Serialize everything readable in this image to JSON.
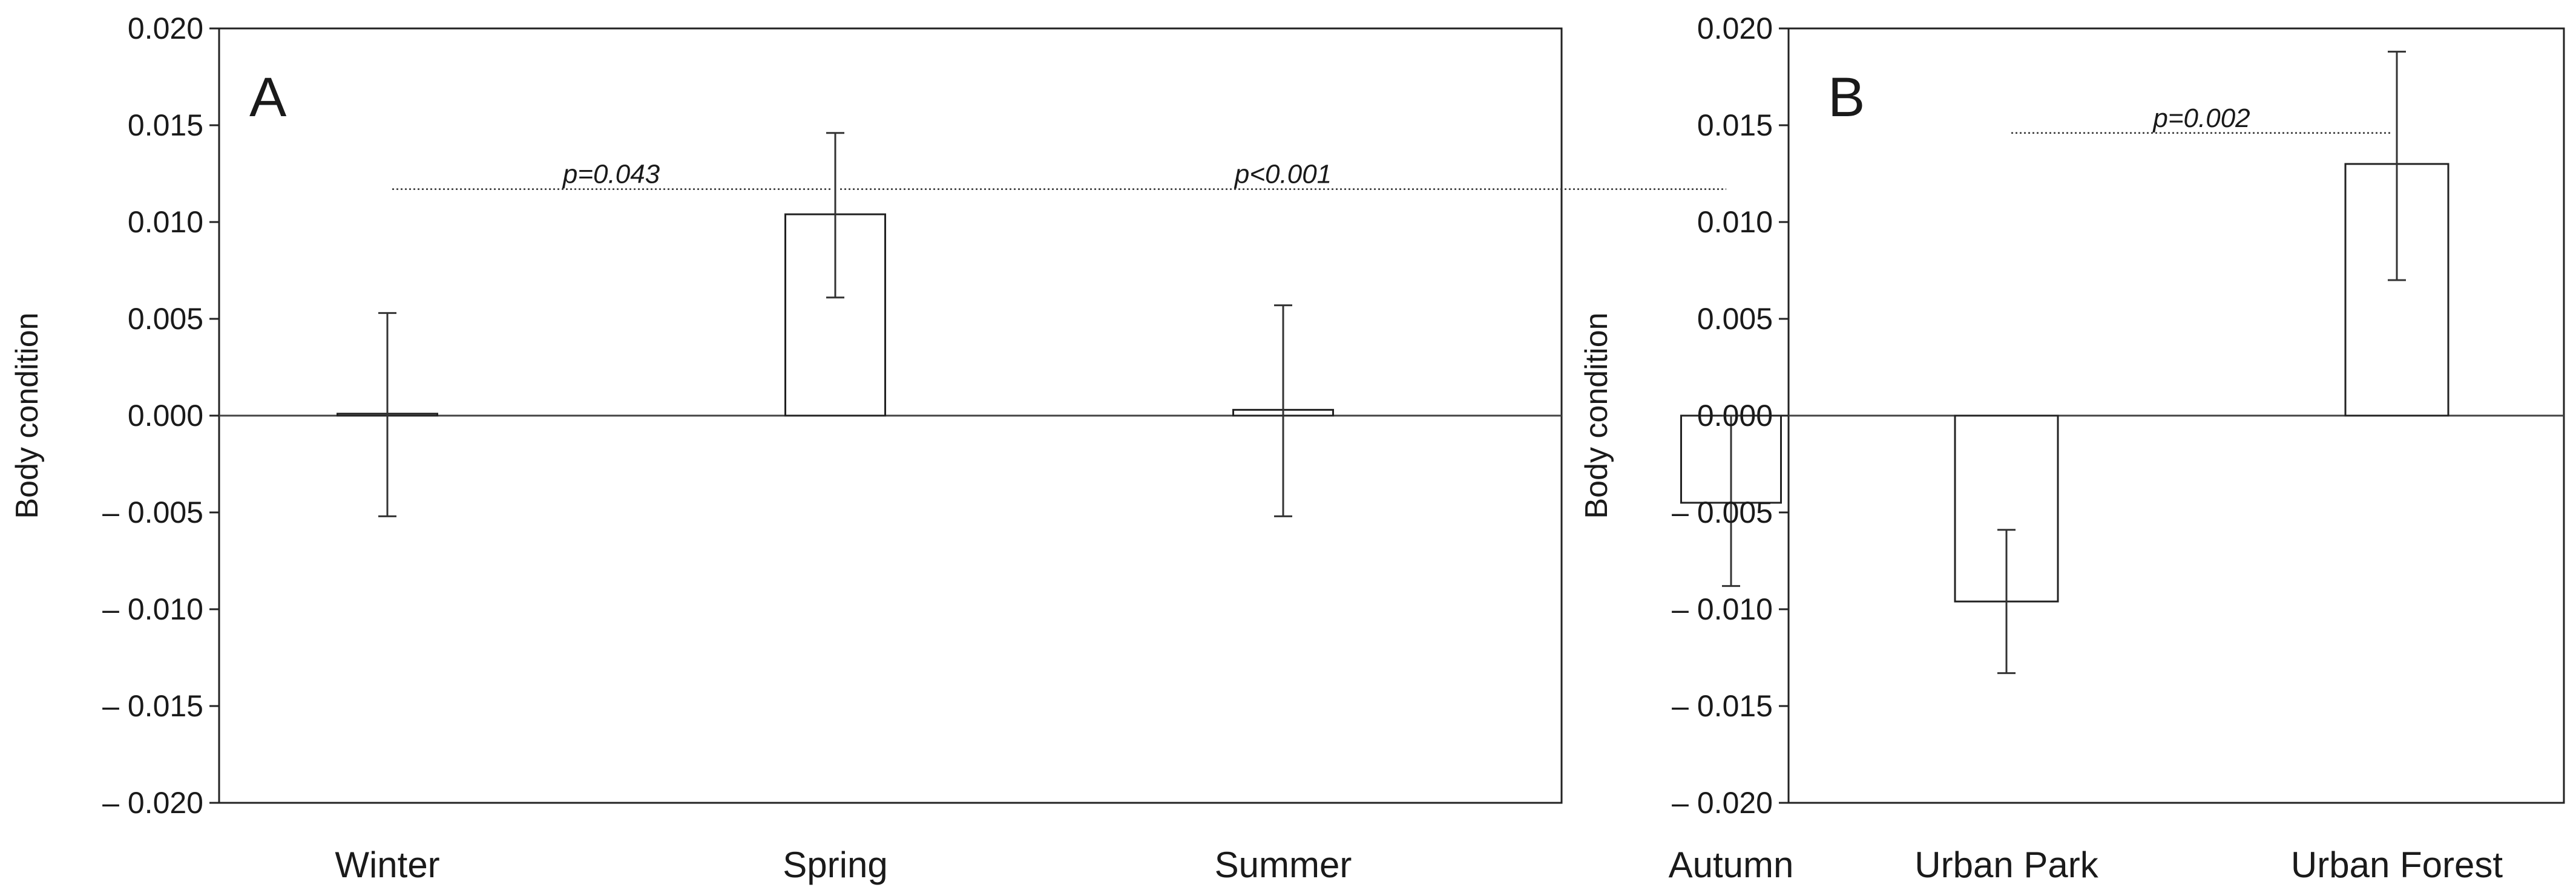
{
  "chart_data": [
    {
      "panel": "A",
      "type": "bar",
      "ylabel": "Body condition",
      "ylim": [
        -0.02,
        0.02
      ],
      "yticks": [
        "0.020",
        "0.015",
        "0.010",
        "0.005",
        "0.000",
        "– 0.005",
        "– 0.010",
        "– 0.015",
        "– 0.020"
      ],
      "categories": [
        "Winter",
        "Spring",
        "Summer",
        "Autumn"
      ],
      "values": [
        0.0001,
        0.0104,
        0.0003,
        -0.0045
      ],
      "errors_low": [
        -0.0052,
        0.0061,
        -0.0052,
        -0.0088
      ],
      "errors_high": [
        0.0053,
        0.0146,
        0.0057,
        0.0
      ],
      "annotations": [
        {
          "text": "p=0.043",
          "from": "Winter",
          "to": "Spring",
          "y": 0.0117
        },
        {
          "text": "p<0.001",
          "from": "Spring",
          "to": "Autumn",
          "y": 0.0117
        }
      ],
      "grid": false
    },
    {
      "panel": "B",
      "type": "bar",
      "ylabel": "Body condition",
      "ylim": [
        -0.02,
        0.02
      ],
      "yticks": [
        "0.020",
        "0.015",
        "0.010",
        "0.005",
        "0.000",
        "– 0.005",
        "– 0.010",
        "– 0.015",
        "– 0.020"
      ],
      "categories": [
        "Urban Park",
        "Urban Forest"
      ],
      "values": [
        -0.0096,
        0.013
      ],
      "errors_low": [
        -0.0133,
        0.007
      ],
      "errors_high": [
        -0.0059,
        0.0188
      ],
      "annotations": [
        {
          "text": "p=0.002",
          "from": "Urban Park",
          "to": "Urban Forest",
          "y": 0.0146
        }
      ],
      "grid": false
    }
  ]
}
